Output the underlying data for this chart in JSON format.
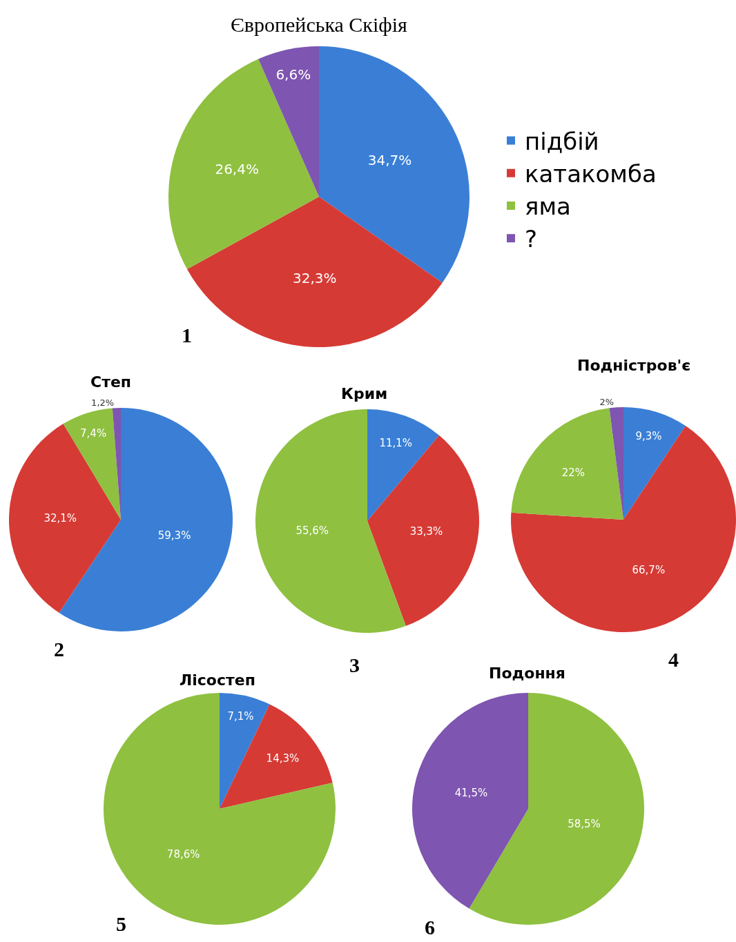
{
  "chart_data": [
    {
      "type": "pie",
      "title": "Європейська Скіфія",
      "categories": [
        "підбій",
        "катакомба",
        "яма",
        "?"
      ],
      "values": [
        34.7,
        32.3,
        26.4,
        6.6
      ],
      "value_labels": [
        "34,7%",
        "32,3%",
        "26,4%",
        "6,6%"
      ],
      "colors": [
        "#3a7fd5",
        "#d63a35",
        "#8fc040",
        "#7e55b0"
      ],
      "legend": "right",
      "annotations": [
        "1"
      ]
    },
    {
      "type": "pie",
      "title": "Степ",
      "categories": [
        null,
        null,
        null,
        null
      ],
      "values": [
        59.3,
        32.1,
        7.4,
        1.2
      ],
      "value_labels": [
        "59,3%",
        "32,1%",
        "7,4%",
        "1,2%"
      ],
      "colors": [
        "#3a7fd5",
        "#d63a35",
        "#8fc040",
        "#7e55b0"
      ],
      "legend": false,
      "annotations": [
        "2"
      ]
    },
    {
      "type": "pie",
      "title": "Крим",
      "categories": [
        null,
        null,
        null
      ],
      "values": [
        11.1,
        33.3,
        55.6
      ],
      "value_labels": [
        "11,1%",
        "33,3%",
        "55,6%"
      ],
      "colors": [
        "#3a7fd5",
        "#d63a35",
        "#8fc040"
      ],
      "legend": false,
      "annotations": [
        "3"
      ]
    },
    {
      "type": "pie",
      "title": "Подністров'є",
      "categories": [
        null,
        null,
        null,
        null
      ],
      "values": [
        9.3,
        66.7,
        22,
        2
      ],
      "value_labels": [
        "9,3%",
        "66,7%",
        "22%",
        "2%"
      ],
      "colors": [
        "#3a7fd5",
        "#d63a35",
        "#8fc040",
        "#7e55b0"
      ],
      "legend": false,
      "annotations": [
        "4"
      ]
    },
    {
      "type": "pie",
      "title": "Лісостеп",
      "categories": [
        null,
        null,
        null
      ],
      "values": [
        7.1,
        14.3,
        78.6
      ],
      "value_labels": [
        "7,1%",
        "14,3%",
        "78,6%"
      ],
      "colors": [
        "#3a7fd5",
        "#d63a35",
        "#8fc040"
      ],
      "legend": false,
      "annotations": [
        "5"
      ]
    },
    {
      "type": "pie",
      "title": "Подоння",
      "categories": [
        null,
        null
      ],
      "values": [
        58.5,
        41.5
      ],
      "value_labels": [
        "58,5%",
        "41,5%"
      ],
      "colors": [
        "#8fc040",
        "#7e55b0"
      ],
      "legend": false,
      "annotations": [
        "6"
      ]
    }
  ]
}
